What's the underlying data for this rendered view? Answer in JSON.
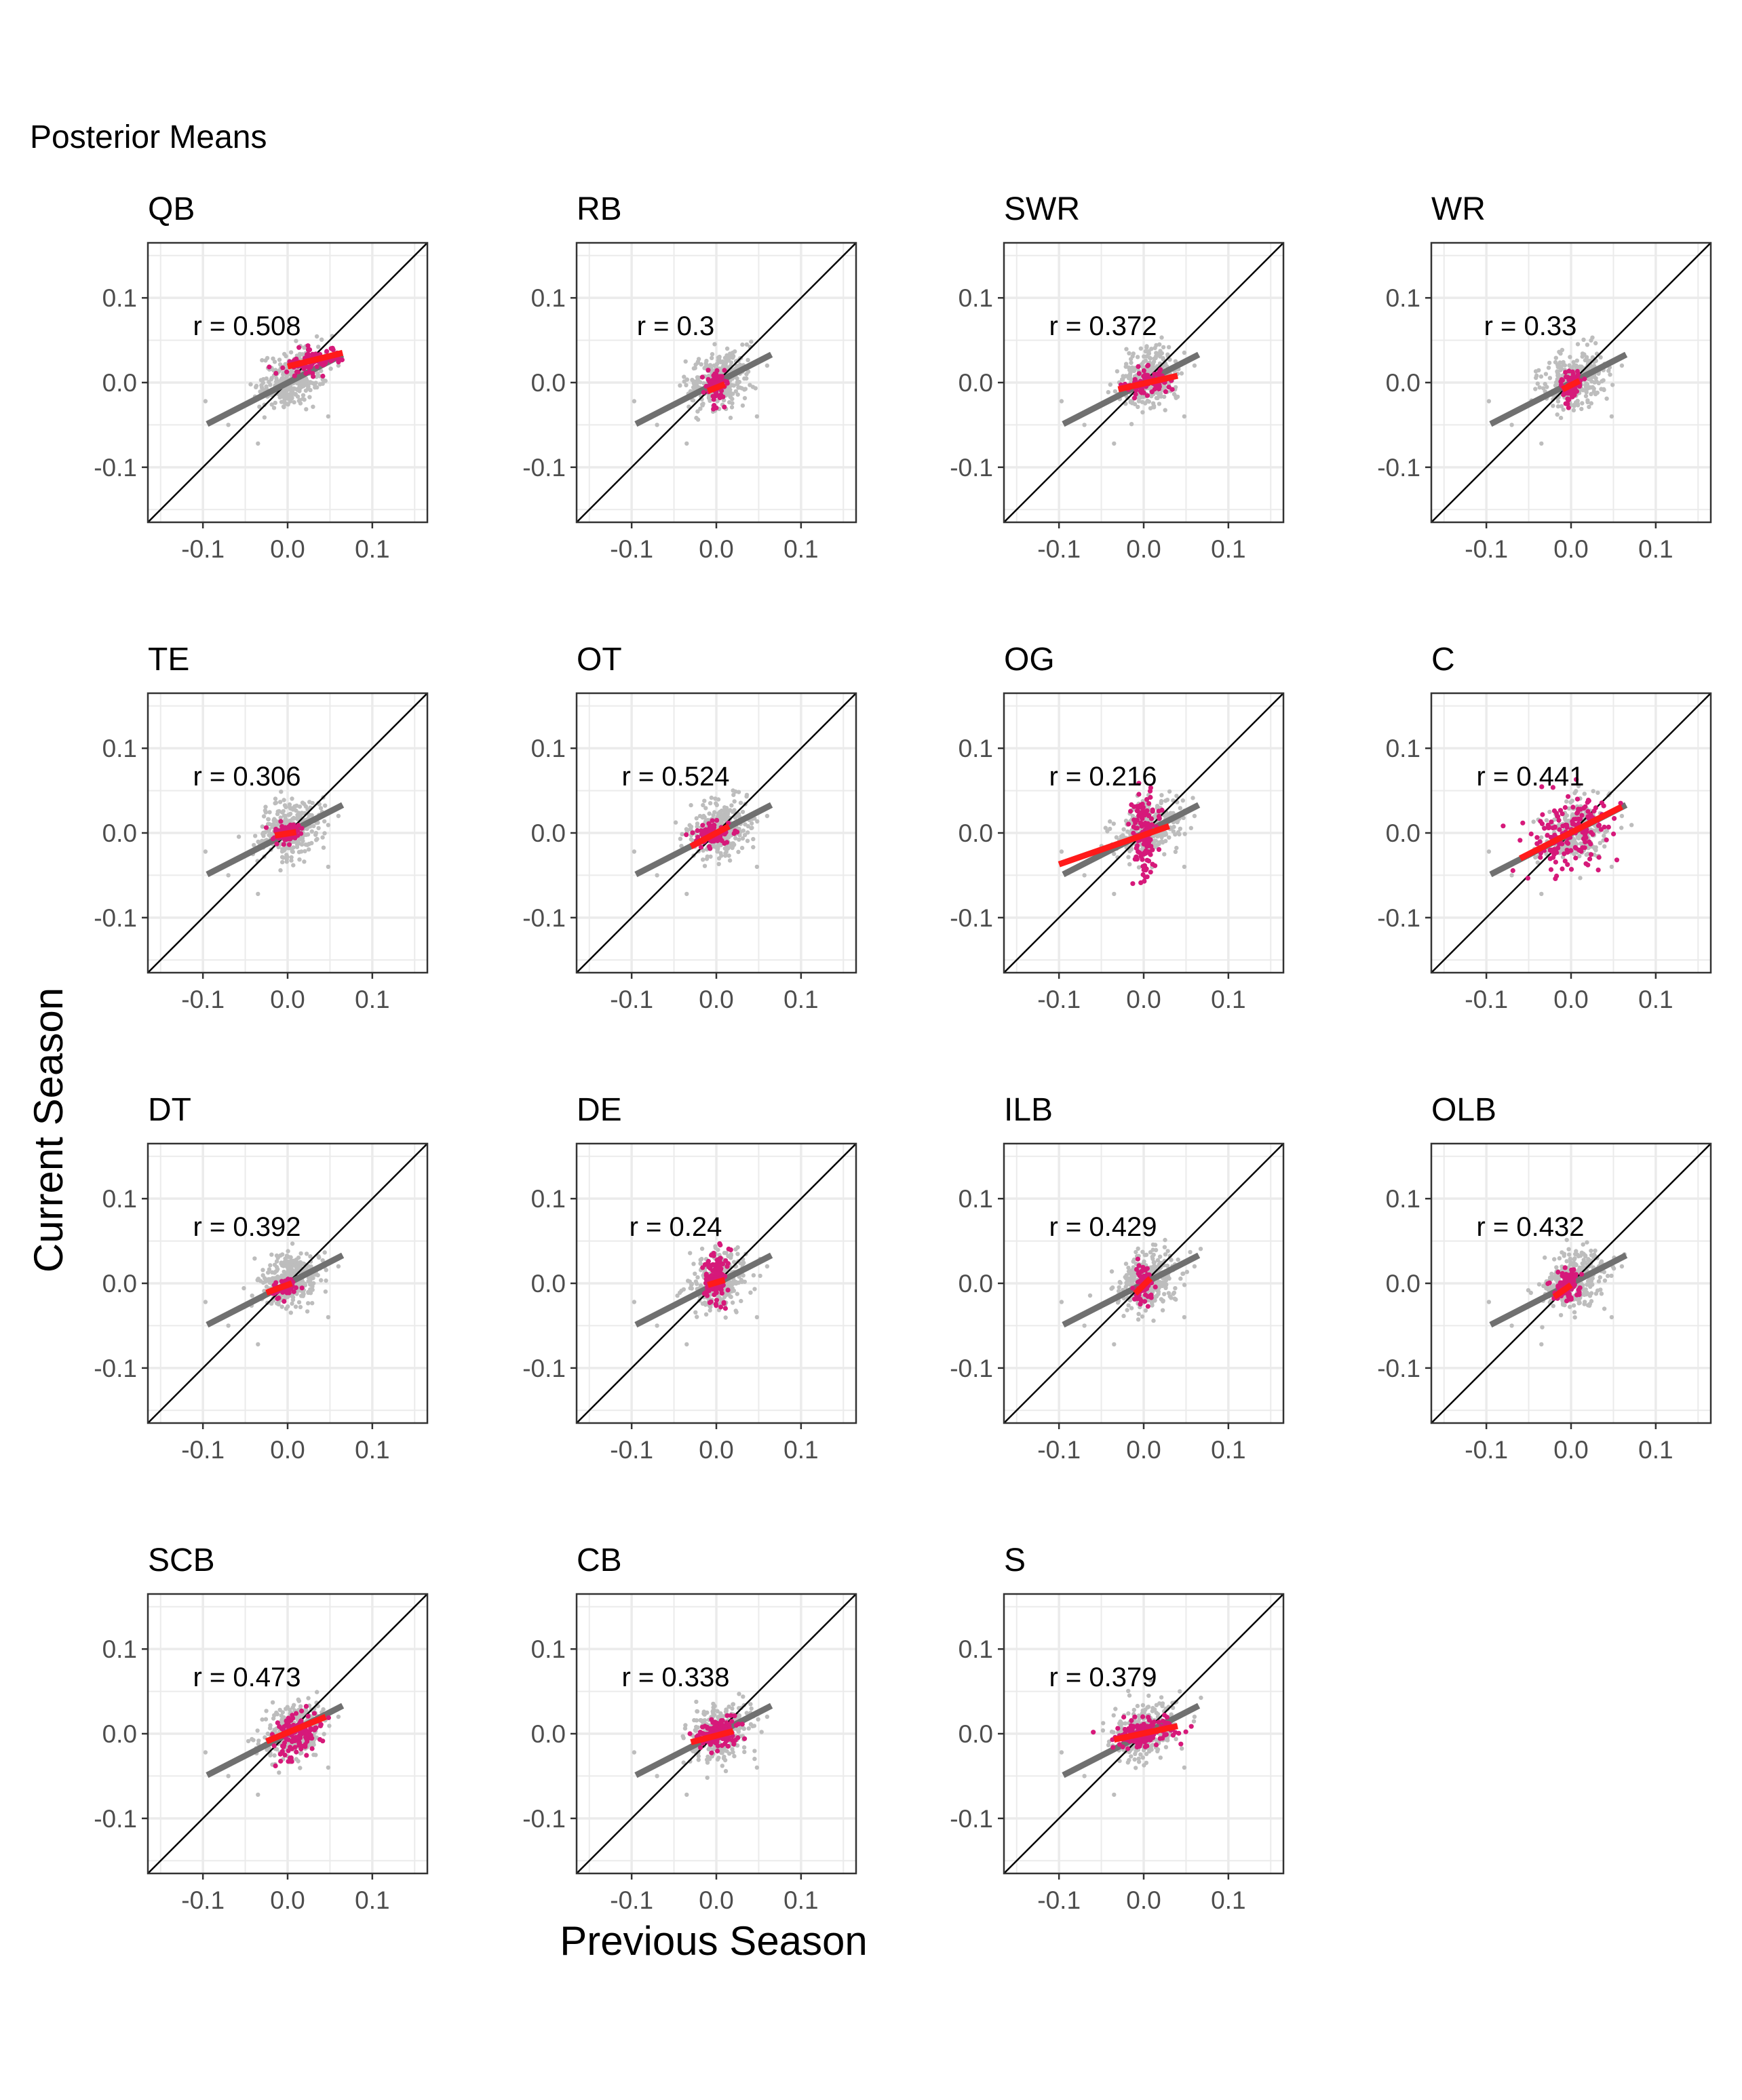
{
  "figure": {
    "title": "Posterior Means",
    "xlabel": "Previous Season",
    "ylabel": "Current Season",
    "xlim": [
      -0.165,
      0.165
    ],
    "ylim": [
      -0.165,
      0.165
    ],
    "xticks": [
      -0.1,
      0.0,
      0.1
    ],
    "yticks": [
      -0.1,
      0.0,
      0.1
    ],
    "xtick_labels": [
      "-0.1",
      "0.0",
      "0.1"
    ],
    "ytick_labels": [
      "-0.1",
      "0.0",
      "0.1"
    ],
    "grid": true,
    "colors": {
      "all_points": "#bdbdbd",
      "all_fit": "#707070",
      "position_points": "#d6197a",
      "position_fit": "#ff1a1a",
      "identity_line": "#000000",
      "panel_border": "#333333",
      "grid": "#ebebeb"
    }
  },
  "chart_data": {
    "type": "scatter",
    "layout": "small-multiples 4x4",
    "overall_fit": {
      "x": [
        -0.095,
        0.065
      ],
      "y": [
        -0.049,
        0.033
      ]
    },
    "panels": [
      {
        "position": "QB",
        "r_label": "r = 0.508",
        "r": 0.508,
        "center": [
          0.03,
          0.025
        ],
        "spread": [
          0.018,
          0.008
        ],
        "n": 90,
        "fit": {
          "x": [
            0.0,
            0.065
          ],
          "y": [
            0.019,
            0.035
          ]
        }
      },
      {
        "position": "RB",
        "r_label": "r = 0.3",
        "r": 0.3,
        "center": [
          0.0,
          -0.005
        ],
        "spread": [
          0.006,
          0.01
        ],
        "n": 70,
        "fit": {
          "x": [
            -0.01,
            0.01
          ],
          "y": [
            -0.01,
            -0.002
          ]
        }
      },
      {
        "position": "SWR",
        "r_label": "r = 0.372",
        "r": 0.372,
        "center": [
          0.005,
          0.0
        ],
        "spread": [
          0.014,
          0.008
        ],
        "n": 80,
        "fit": {
          "x": [
            -0.03,
            0.04
          ],
          "y": [
            -0.008,
            0.008
          ]
        }
      },
      {
        "position": "WR",
        "r_label": "r = 0.33",
        "r": 0.33,
        "center": [
          0.0,
          -0.003
        ],
        "spread": [
          0.007,
          0.009
        ],
        "n": 70,
        "fit": {
          "x": [
            -0.01,
            0.01
          ],
          "y": [
            -0.008,
            0.002
          ]
        }
      },
      {
        "position": "TE",
        "r_label": "r = 0.306",
        "r": 0.306,
        "center": [
          0.0,
          0.0
        ],
        "spread": [
          0.008,
          0.006
        ],
        "n": 70,
        "fit": {
          "x": [
            -0.015,
            0.01
          ],
          "y": [
            -0.003,
            0.001
          ]
        }
      },
      {
        "position": "OT",
        "r_label": "r = 0.524",
        "r": 0.524,
        "center": [
          -0.005,
          -0.002
        ],
        "spread": [
          0.01,
          0.008
        ],
        "n": 80,
        "fit": {
          "x": [
            -0.03,
            0.015
          ],
          "y": [
            -0.016,
            0.008
          ]
        }
      },
      {
        "position": "OG",
        "r_label": "r = 0.216",
        "r": 0.216,
        "center": [
          0.0,
          0.0
        ],
        "spread": [
          0.008,
          0.024
        ],
        "n": 150,
        "fit": {
          "x": [
            -0.1,
            0.03
          ],
          "y": [
            -0.037,
            0.008
          ]
        }
      },
      {
        "position": "C",
        "r_label": "r = 0.441",
        "r": 0.441,
        "center": [
          0.0,
          0.0
        ],
        "spread": [
          0.022,
          0.022
        ],
        "n": 160,
        "fit": {
          "x": [
            -0.06,
            0.06
          ],
          "y": [
            -0.03,
            0.031
          ]
        }
      },
      {
        "position": "DT",
        "r_label": "r = 0.392",
        "r": 0.392,
        "center": [
          -0.005,
          -0.005
        ],
        "spread": [
          0.008,
          0.005
        ],
        "n": 60,
        "fit": {
          "x": [
            -0.025,
            0.005
          ],
          "y": [
            -0.011,
            0.0
          ]
        }
      },
      {
        "position": "DE",
        "r_label": "r = 0.24",
        "r": 0.24,
        "center": [
          0.0,
          0.005
        ],
        "spread": [
          0.007,
          0.016
        ],
        "n": 110,
        "fit": {
          "x": [
            -0.01,
            0.01
          ],
          "y": [
            -0.002,
            0.004
          ]
        }
      },
      {
        "position": "ILB",
        "r_label": "r = 0.429",
        "r": 0.429,
        "center": [
          0.0,
          0.0
        ],
        "spread": [
          0.006,
          0.012
        ],
        "n": 80,
        "fit": {
          "x": [
            -0.01,
            0.008
          ],
          "y": [
            -0.012,
            0.006
          ]
        }
      },
      {
        "position": "OLB",
        "r_label": "r = 0.432",
        "r": 0.432,
        "center": [
          -0.005,
          -0.005
        ],
        "spread": [
          0.007,
          0.01
        ],
        "n": 80,
        "fit": {
          "x": [
            -0.02,
            0.0
          ],
          "y": [
            -0.016,
            -0.002
          ]
        }
      },
      {
        "position": "SCB",
        "r_label": "r = 0.473",
        "r": 0.473,
        "center": [
          0.01,
          0.0
        ],
        "spread": [
          0.014,
          0.014
        ],
        "n": 120,
        "fit": {
          "x": [
            -0.025,
            0.045
          ],
          "y": [
            -0.009,
            0.02
          ]
        }
      },
      {
        "position": "CB",
        "r_label": "r = 0.338",
        "r": 0.338,
        "center": [
          0.0,
          0.0
        ],
        "spread": [
          0.012,
          0.009
        ],
        "n": 120,
        "fit": {
          "x": [
            -0.03,
            0.02
          ],
          "y": [
            -0.01,
            0.003
          ]
        }
      },
      {
        "position": "S",
        "r_label": "r = 0.379",
        "r": 0.379,
        "center": [
          0.0,
          0.0
        ],
        "spread": [
          0.018,
          0.008
        ],
        "n": 150,
        "fit": {
          "x": [
            -0.035,
            0.04
          ],
          "y": [
            -0.007,
            0.009
          ]
        }
      }
    ]
  }
}
